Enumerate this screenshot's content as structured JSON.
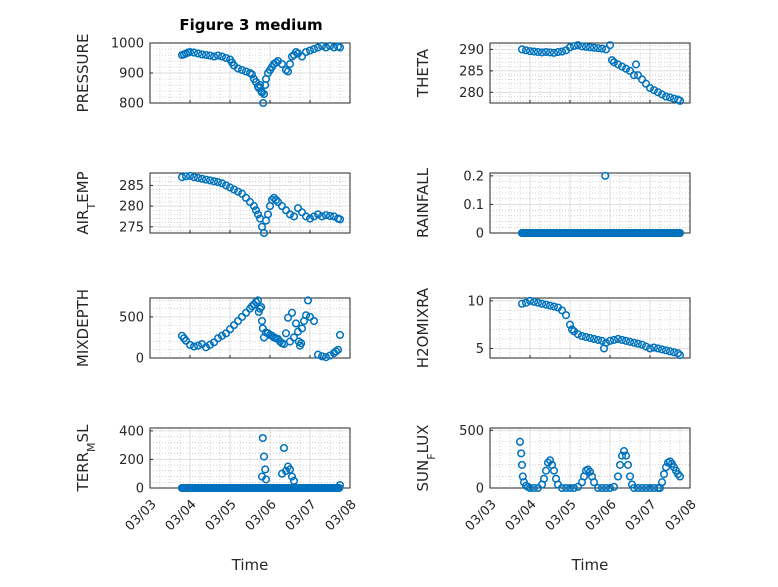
{
  "figure_title": "Figure 3 medium",
  "colors": {
    "marker": "#0072BD",
    "axes": "#262626",
    "grid": "#dcdcdc"
  },
  "time_ticks": [
    "03/03",
    "03/04",
    "03/05",
    "03/06",
    "03/07",
    "03/08"
  ],
  "time_xlabel": "Time",
  "chart_data": [
    {
      "type": "scatter",
      "title": "Figure 3 medium",
      "ylabel": "PRESSURE",
      "xlabel": "",
      "xlim": [
        0,
        5
      ],
      "ylim": [
        800,
        1000
      ],
      "yticks": [
        800,
        900,
        1000
      ],
      "ytick_labels": [
        "800",
        "900",
        "1000"
      ],
      "xtick_labels": [],
      "grid": true,
      "x": [
        0.8,
        0.85,
        0.9,
        0.95,
        1.0,
        1.1,
        1.2,
        1.3,
        1.4,
        1.5,
        1.6,
        1.7,
        1.8,
        1.9,
        2.0,
        2.05,
        2.1,
        2.2,
        2.3,
        2.4,
        2.5,
        2.55,
        2.6,
        2.65,
        2.7,
        2.72,
        2.75,
        2.78,
        2.8,
        2.83,
        2.85,
        2.88,
        2.9,
        2.95,
        3.0,
        3.05,
        3.1,
        3.15,
        3.2,
        3.3,
        3.4,
        3.45,
        3.5,
        3.55,
        3.6,
        3.65,
        3.7,
        3.8,
        3.9,
        4.0,
        4.1,
        4.2,
        4.3,
        4.4,
        4.5,
        4.6,
        4.7,
        4.75
      ],
      "values": [
        960,
        962,
        965,
        968,
        970,
        968,
        965,
        962,
        960,
        958,
        955,
        958,
        955,
        950,
        945,
        935,
        925,
        915,
        910,
        905,
        900,
        895,
        880,
        870,
        855,
        850,
        860,
        840,
        835,
        800,
        830,
        860,
        880,
        900,
        910,
        920,
        930,
        935,
        940,
        930,
        910,
        905,
        930,
        955,
        960,
        970,
        965,
        955,
        970,
        975,
        980,
        985,
        990,
        985,
        990,
        985,
        988,
        985
      ]
    },
    {
      "type": "scatter",
      "ylabel": "THETA",
      "xlabel": "",
      "xlim": [
        0,
        5
      ],
      "ylim": [
        277.5,
        291.5
      ],
      "yticks": [
        280,
        285,
        290
      ],
      "ytick_labels": [
        "280",
        "285",
        "290"
      ],
      "xtick_labels": [],
      "grid": true,
      "x": [
        0.8,
        0.9,
        1.0,
        1.1,
        1.2,
        1.3,
        1.4,
        1.5,
        1.6,
        1.7,
        1.8,
        1.9,
        2.0,
        2.1,
        2.2,
        2.3,
        2.4,
        2.5,
        2.6,
        2.7,
        2.8,
        2.9,
        3.0,
        3.05,
        3.1,
        3.2,
        3.3,
        3.4,
        3.5,
        3.6,
        3.65,
        3.7,
        3.8,
        3.9,
        4.0,
        4.1,
        4.2,
        4.3,
        4.4,
        4.5,
        4.6,
        4.7,
        4.75
      ],
      "values": [
        290.0,
        289.8,
        289.6,
        289.5,
        289.4,
        289.3,
        289.4,
        289.3,
        289.2,
        289.4,
        289.5,
        289.8,
        290.5,
        290.8,
        291.0,
        290.7,
        290.6,
        290.5,
        290.4,
        290.3,
        290.2,
        290.0,
        291.0,
        287.5,
        287.0,
        286.5,
        286.0,
        285.5,
        285.0,
        284.0,
        286.5,
        284.0,
        283.0,
        282.0,
        281.0,
        280.5,
        280.0,
        279.5,
        279.0,
        278.8,
        278.5,
        278.3,
        278.0
      ]
    },
    {
      "type": "scatter",
      "ylabel": "AIR_TEMP",
      "ylabel_main": "AIR",
      "ylabel_sub": "T",
      "ylabel_rest": "EMP",
      "xlabel": "",
      "xlim": [
        0,
        5
      ],
      "ylim": [
        273.5,
        288
      ],
      "yticks": [
        275,
        280,
        285
      ],
      "ytick_labels": [
        "275",
        "280",
        "285"
      ],
      "xtick_labels": [],
      "grid": true,
      "x": [
        0.8,
        0.9,
        1.0,
        1.1,
        1.2,
        1.3,
        1.4,
        1.5,
        1.6,
        1.7,
        1.8,
        1.9,
        2.0,
        2.1,
        2.2,
        2.3,
        2.4,
        2.5,
        2.6,
        2.65,
        2.7,
        2.75,
        2.8,
        2.85,
        2.9,
        2.95,
        3.0,
        3.05,
        3.1,
        3.15,
        3.2,
        3.3,
        3.4,
        3.5,
        3.6,
        3.7,
        3.8,
        3.9,
        4.0,
        4.1,
        4.2,
        4.3,
        4.4,
        4.5,
        4.6,
        4.7,
        4.75
      ],
      "values": [
        287.0,
        287.2,
        287.3,
        287.0,
        286.8,
        286.6,
        286.4,
        286.2,
        286.0,
        285.8,
        285.5,
        285.0,
        284.5,
        284.0,
        283.5,
        283.0,
        282.0,
        281.0,
        280.0,
        279.0,
        278.0,
        277.0,
        275.0,
        273.5,
        276.5,
        278.0,
        280.0,
        281.5,
        282.0,
        281.5,
        281.0,
        280.0,
        279.0,
        278.0,
        277.5,
        279.5,
        278.5,
        277.5,
        277.0,
        277.5,
        278.0,
        277.5,
        277.8,
        277.6,
        277.5,
        277.0,
        276.8
      ]
    },
    {
      "type": "scatter",
      "ylabel": "RAINFALL",
      "xlabel": "",
      "xlim": [
        0,
        5
      ],
      "ylim": [
        0,
        0.21
      ],
      "yticks": [
        0,
        0.1,
        0.2
      ],
      "ytick_labels": [
        "0",
        "0.1",
        "0.2"
      ],
      "xtick_labels": [],
      "grid": true,
      "x": [
        0.8,
        0.9,
        1.0,
        1.1,
        1.2,
        1.3,
        1.4,
        1.5,
        1.6,
        1.7,
        1.8,
        1.9,
        2.0,
        2.1,
        2.2,
        2.3,
        2.4,
        2.5,
        2.6,
        2.7,
        2.8,
        2.9,
        3.0,
        3.1,
        3.2,
        3.3,
        3.4,
        3.5,
        3.6,
        3.7,
        3.8,
        3.9,
        4.0,
        4.1,
        4.2,
        4.3,
        4.4,
        4.5,
        4.6,
        4.7,
        4.75,
        2.88
      ],
      "values": [
        0,
        0,
        0,
        0,
        0,
        0,
        0,
        0,
        0,
        0,
        0,
        0,
        0,
        0,
        0,
        0,
        0,
        0,
        0,
        0,
        0,
        0,
        0,
        0,
        0,
        0,
        0,
        0,
        0,
        0,
        0,
        0,
        0,
        0,
        0,
        0,
        0,
        0,
        0,
        0,
        0,
        0.2
      ]
    },
    {
      "type": "scatter",
      "ylabel": "MIXDEPTH",
      "xlabel": "",
      "xlim": [
        0,
        5
      ],
      "ylim": [
        0,
        730
      ],
      "yticks": [
        0,
        500
      ],
      "ytick_labels": [
        "0",
        "500"
      ],
      "xtick_labels": [],
      "grid": true,
      "x": [
        0.8,
        0.85,
        0.9,
        1.0,
        1.1,
        1.2,
        1.3,
        1.4,
        1.5,
        1.6,
        1.7,
        1.8,
        1.9,
        2.0,
        2.1,
        2.2,
        2.3,
        2.4,
        2.5,
        2.55,
        2.6,
        2.65,
        2.7,
        2.72,
        2.75,
        2.78,
        2.8,
        2.82,
        2.85,
        2.9,
        2.95,
        3.0,
        3.05,
        3.1,
        3.15,
        3.2,
        3.25,
        3.3,
        3.35,
        3.4,
        3.45,
        3.5,
        3.55,
        3.6,
        3.65,
        3.7,
        3.72,
        3.75,
        3.78,
        3.8,
        3.85,
        3.9,
        3.95,
        4.0,
        4.1,
        4.2,
        4.3,
        4.4,
        4.5,
        4.6,
        4.65,
        4.7,
        4.75
      ],
      "values": [
        270,
        240,
        210,
        160,
        140,
        150,
        170,
        130,
        160,
        190,
        240,
        270,
        300,
        350,
        400,
        450,
        500,
        550,
        600,
        630,
        650,
        680,
        700,
        560,
        600,
        620,
        450,
        360,
        250,
        310,
        300,
        280,
        270,
        250,
        240,
        230,
        200,
        180,
        170,
        300,
        490,
        200,
        550,
        250,
        420,
        320,
        200,
        150,
        180,
        360,
        450,
        520,
        700,
        500,
        450,
        40,
        20,
        10,
        30,
        60,
        80,
        100,
        280
      ]
    },
    {
      "type": "scatter",
      "ylabel": "H2OMIXRA",
      "xlabel": "",
      "xlim": [
        0,
        5
      ],
      "ylim": [
        4,
        10.3
      ],
      "yticks": [
        5,
        10
      ],
      "ytick_labels": [
        "5",
        "10"
      ],
      "xtick_labels": [],
      "grid": true,
      "x": [
        0.8,
        0.9,
        1.0,
        1.1,
        1.2,
        1.3,
        1.4,
        1.5,
        1.6,
        1.7,
        1.8,
        1.9,
        2.0,
        2.05,
        2.1,
        2.2,
        2.3,
        2.4,
        2.5,
        2.6,
        2.7,
        2.8,
        2.85,
        2.9,
        3.0,
        3.1,
        3.2,
        3.3,
        3.4,
        3.5,
        3.6,
        3.7,
        3.8,
        3.9,
        4.0,
        4.1,
        4.2,
        4.3,
        4.4,
        4.5,
        4.6,
        4.7,
        4.75
      ],
      "values": [
        9.7,
        9.8,
        10.0,
        9.9,
        9.8,
        9.7,
        9.6,
        9.5,
        9.4,
        9.3,
        9.0,
        8.5,
        7.5,
        7.0,
        6.8,
        6.5,
        6.3,
        6.2,
        6.1,
        6.0,
        5.9,
        5.8,
        5.0,
        5.6,
        5.8,
        5.9,
        6.0,
        5.9,
        5.8,
        5.7,
        5.6,
        5.5,
        5.4,
        5.2,
        5.0,
        5.1,
        5.0,
        4.9,
        4.8,
        4.7,
        4.6,
        4.5,
        4.3
      ]
    },
    {
      "type": "scatter",
      "ylabel": "TERR_MSL",
      "ylabel_main": "TERR",
      "ylabel_sub": "M",
      "ylabel_rest": "SL",
      "xlabel": "Time",
      "xlim": [
        0,
        5
      ],
      "ylim": [
        0,
        420
      ],
      "yticks": [
        0,
        200,
        400
      ],
      "ytick_labels": [
        "0",
        "200",
        "400"
      ],
      "xtick_labels": [
        "03/03",
        "03/04",
        "03/05",
        "03/06",
        "03/07",
        "03/08"
      ],
      "grid": true,
      "x": [
        0.8,
        0.9,
        1.0,
        1.1,
        1.2,
        1.3,
        1.4,
        1.5,
        1.6,
        1.7,
        1.8,
        1.9,
        2.0,
        2.1,
        2.2,
        2.3,
        2.4,
        2.5,
        2.6,
        2.7,
        2.75,
        2.8,
        2.82,
        2.85,
        2.88,
        2.9,
        3.0,
        3.1,
        3.2,
        3.3,
        3.35,
        3.4,
        3.45,
        3.5,
        3.55,
        3.6,
        3.7,
        3.8,
        3.9,
        4.0,
        4.1,
        4.2,
        4.3,
        4.4,
        4.5,
        4.6,
        4.7,
        4.75
      ],
      "values": [
        0,
        0,
        0,
        0,
        0,
        0,
        0,
        0,
        0,
        0,
        0,
        0,
        0,
        0,
        0,
        0,
        0,
        0,
        0,
        0,
        0,
        80,
        350,
        220,
        130,
        60,
        0,
        0,
        0,
        100,
        280,
        120,
        150,
        130,
        80,
        50,
        0,
        0,
        0,
        0,
        0,
        0,
        0,
        0,
        0,
        0,
        0,
        20
      ]
    },
    {
      "type": "scatter",
      "ylabel": "SUN_FLUX",
      "ylabel_main": "SUN",
      "ylabel_sub": "F",
      "ylabel_rest": "LUX",
      "xlabel": "Time",
      "xlim": [
        0,
        5
      ],
      "ylim": [
        0,
        520
      ],
      "yticks": [
        0,
        500
      ],
      "ytick_labels": [
        "0",
        "500"
      ],
      "xtick_labels": [
        "03/03",
        "03/04",
        "03/05",
        "03/06",
        "03/07",
        "03/08"
      ],
      "grid": true,
      "x": [
        0.75,
        0.78,
        0.8,
        0.82,
        0.85,
        0.9,
        0.95,
        1.0,
        1.1,
        1.2,
        1.3,
        1.35,
        1.4,
        1.45,
        1.5,
        1.55,
        1.6,
        1.65,
        1.7,
        1.8,
        1.9,
        2.0,
        2.1,
        2.2,
        2.3,
        2.35,
        2.4,
        2.45,
        2.5,
        2.55,
        2.6,
        2.7,
        2.8,
        2.9,
        3.0,
        3.1,
        3.2,
        3.25,
        3.3,
        3.35,
        3.4,
        3.45,
        3.5,
        3.55,
        3.6,
        3.7,
        3.8,
        3.9,
        4.0,
        4.1,
        4.2,
        4.25,
        4.3,
        4.35,
        4.4,
        4.45,
        4.5,
        4.55,
        4.6,
        4.65,
        4.7,
        4.75
      ],
      "values": [
        400,
        300,
        200,
        100,
        50,
        20,
        10,
        0,
        0,
        0,
        30,
        80,
        150,
        220,
        240,
        200,
        150,
        80,
        30,
        0,
        0,
        0,
        0,
        10,
        50,
        100,
        150,
        160,
        140,
        100,
        50,
        0,
        0,
        0,
        0,
        10,
        100,
        200,
        280,
        320,
        280,
        200,
        100,
        30,
        0,
        0,
        0,
        0,
        0,
        0,
        0,
        0,
        50,
        120,
        180,
        220,
        230,
        210,
        180,
        150,
        120,
        100
      ]
    }
  ]
}
